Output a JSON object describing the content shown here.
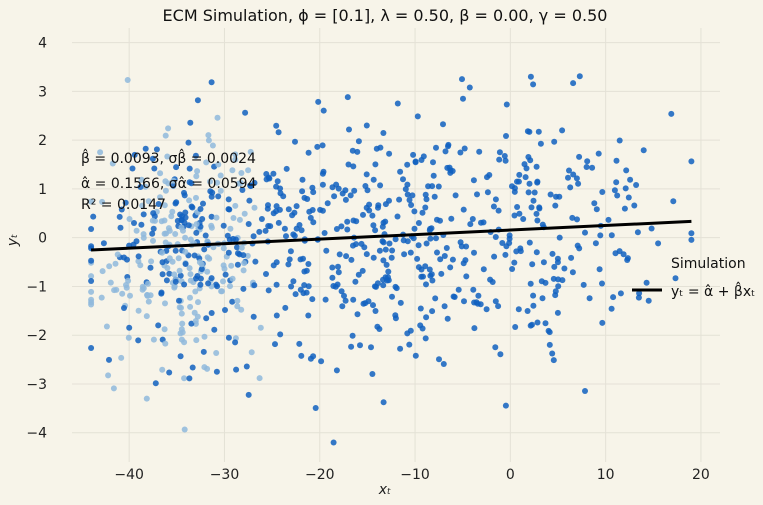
{
  "chart_data": {
    "type": "scatter",
    "title": "ECM Simulation, ϕ = [0.1], λ = 0.50, β = 0.00, γ = 0.50",
    "xlabel": "xₜ",
    "ylabel": "yₜ",
    "xlim": [
      -46,
      22
    ],
    "ylim": [
      -4.6,
      4.3
    ],
    "xticks": [
      -40,
      -30,
      -20,
      -10,
      0,
      10,
      20
    ],
    "yticks": [
      -4,
      -3,
      -2,
      -1,
      0,
      1,
      2,
      3,
      4
    ],
    "grid": true,
    "legend_position": "right",
    "series": [
      {
        "name": "Simulation",
        "kind": "scatter",
        "colors": {
          "early": "#8fb8dc",
          "late": "#1060c0"
        },
        "seed": 12345,
        "n_points": 900,
        "x_range": [
          -44,
          19
        ],
        "y_std": 1.45,
        "note": "dense cloud of simulated points, lighter color at low x"
      },
      {
        "name": "yₜ = α̂ + β̂xₜ",
        "kind": "line",
        "color": "#000000",
        "x": [
          -44,
          19
        ],
        "y": [
          -0.253,
          0.334
        ]
      }
    ],
    "annotations": [
      {
        "text": "β̂ = 0.0093, σβ̂ = 0.0024"
      },
      {
        "text": "α̂ = 0.1566, σα̂ = 0.0594"
      },
      {
        "text": "R² = 0.0147"
      }
    ],
    "legend": [
      "Simulation",
      "yₜ = α̂ + β̂xₜ"
    ]
  }
}
